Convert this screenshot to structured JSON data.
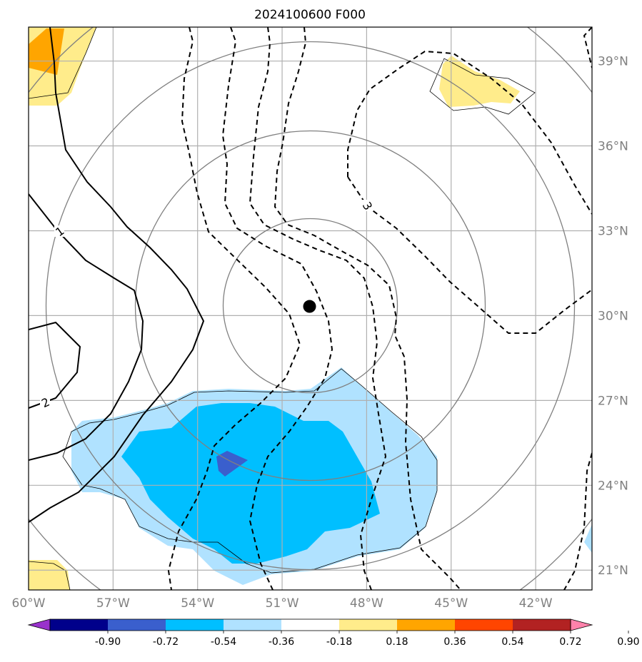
{
  "chart_data": {
    "type": "map-contour",
    "title": "2024100600 F000",
    "x_ticks": [
      "60°W",
      "57°W",
      "54°W",
      "51°W",
      "48°W",
      "45°W",
      "42°W"
    ],
    "x_values": [
      -60,
      -57,
      -54,
      -51,
      -48,
      -45,
      -42
    ],
    "y_ticks": [
      "21°N",
      "24°N",
      "27°N",
      "30°N",
      "33°N",
      "36°N",
      "39°N"
    ],
    "y_values": [
      21,
      24,
      27,
      30,
      33,
      36,
      39
    ],
    "xlim": [
      -60,
      -40
    ],
    "ylim": [
      20.3,
      40.2
    ],
    "grid": true,
    "center_marker": {
      "lon": -50,
      "lat": 30.35
    },
    "contour_labels": [
      "1",
      "2",
      "3"
    ],
    "colorbar": {
      "ticks": [
        "-0.90",
        "-0.72",
        "-0.54",
        "-0.36",
        "-0.18",
        "0.18",
        "0.36",
        "0.54",
        "0.72",
        "0.90"
      ],
      "tick_values": [
        -0.9,
        -0.72,
        -0.54,
        -0.36,
        -0.18,
        0.18,
        0.36,
        0.54,
        0.72,
        0.9
      ],
      "colors": [
        "#9932cc",
        "#00008b",
        "#3a5fcd",
        "#00bfff",
        "#b0e2ff",
        "#ffffff",
        "#ffec8b",
        "#ffa500",
        "#ff4500",
        "#b22222",
        "#ff82ab"
      ],
      "extend": "both"
    }
  }
}
